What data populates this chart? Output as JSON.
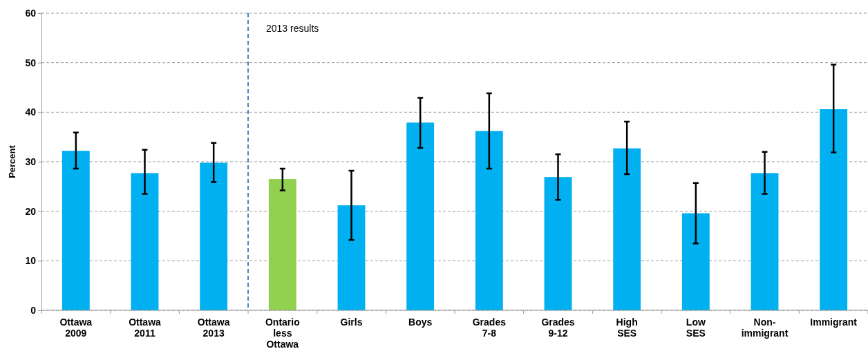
{
  "chart_data": {
    "type": "bar",
    "ylabel": "Percent",
    "categories": [
      "Ottawa 2009",
      "Ottawa 2011",
      "Ottawa 2013",
      "Ontario less Ottawa",
      "Girls",
      "Boys",
      "Grades 7-8",
      "Grades 9-12",
      "High SES",
      "Low SES",
      "Non-immigrant",
      "Immigrant"
    ],
    "values": [
      32.2,
      27.7,
      29.8,
      26.5,
      21.2,
      37.9,
      36.2,
      26.9,
      32.7,
      19.6,
      27.7,
      40.6
    ],
    "colors": [
      "#00b0f0",
      "#00b0f0",
      "#00b0f0",
      "#92d050",
      "#00b0f0",
      "#00b0f0",
      "#00b0f0",
      "#00b0f0",
      "#00b0f0",
      "#00b0f0",
      "#00b0f0",
      "#00b0f0"
    ],
    "errors": [
      [
        28.6,
        35.9
      ],
      [
        23.5,
        32.4
      ],
      [
        25.9,
        33.8
      ],
      [
        24.2,
        28.6
      ],
      [
        14.2,
        28.2
      ],
      [
        32.8,
        42.9
      ],
      [
        28.6,
        43.8
      ],
      [
        22.3,
        31.5
      ],
      [
        27.5,
        38.1
      ],
      [
        13.5,
        25.7
      ],
      [
        23.5,
        32.0
      ],
      [
        31.9,
        49.6
      ]
    ],
    "ylim": [
      0,
      60
    ],
    "yticks": [
      0,
      10,
      20,
      30,
      40,
      50,
      60
    ],
    "grid": "y",
    "annotations": [
      "2013 results"
    ]
  }
}
